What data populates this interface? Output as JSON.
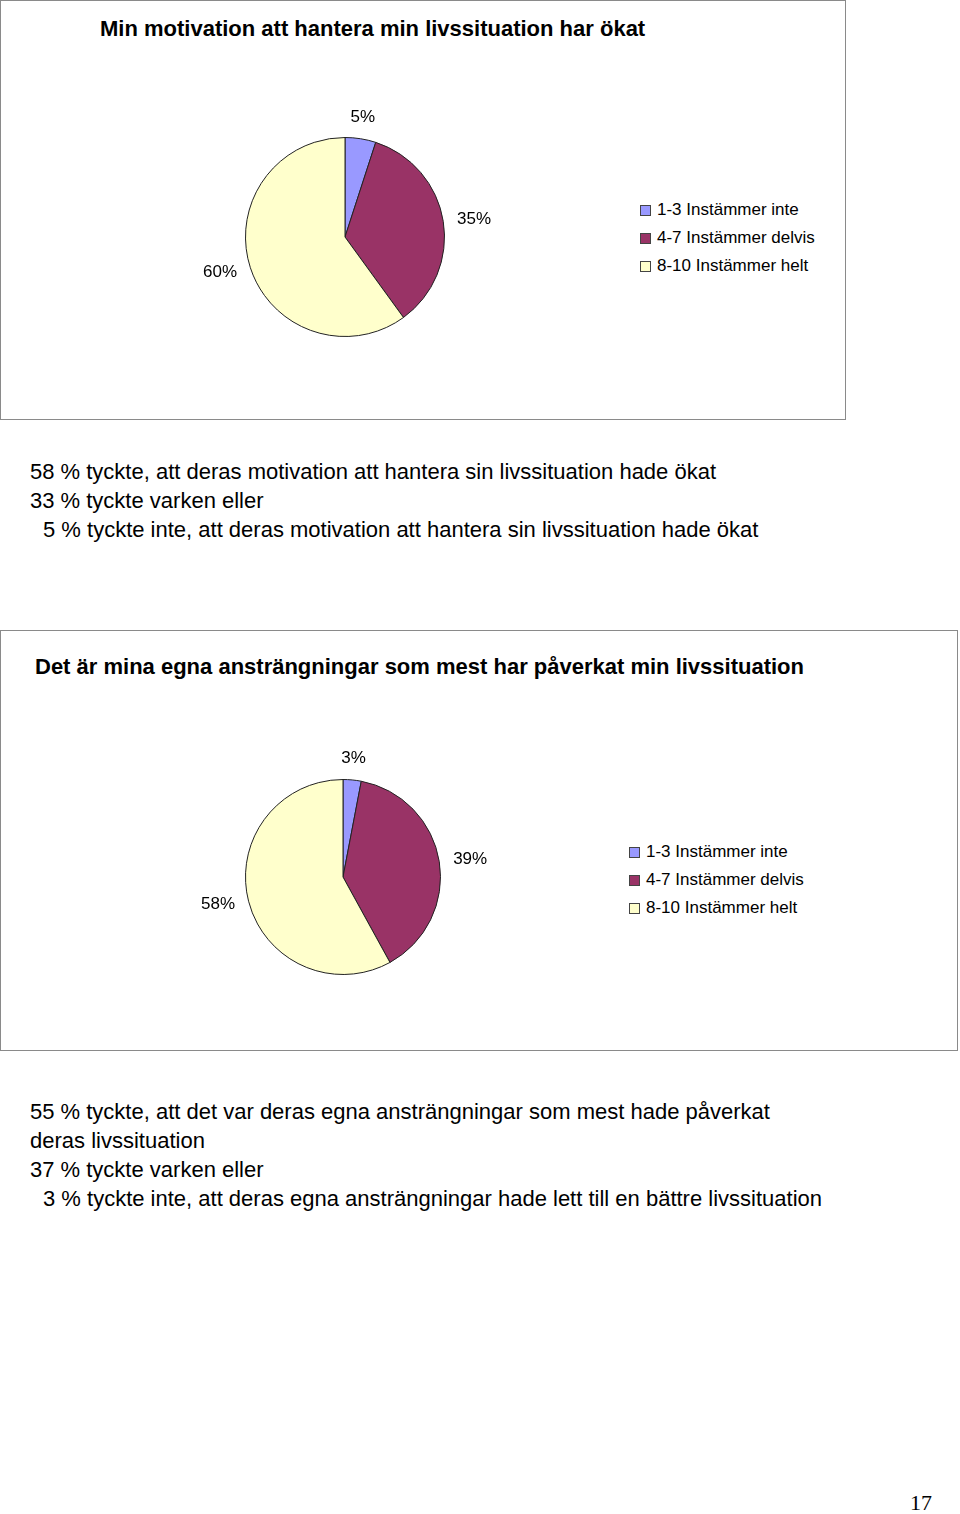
{
  "chart_data": [
    {
      "type": "pie",
      "title": "Min motivation att hantera min livssituation har ökat",
      "categories": [
        "1-3 Instämmer inte",
        "4-7 Instämmer delvis",
        "8-10 Instämmer helt"
      ],
      "values": [
        5,
        35,
        60
      ],
      "value_labels": [
        "5%",
        "35%",
        "60%"
      ],
      "colors": [
        "#9999ff",
        "#993366",
        "#ffffcc"
      ],
      "data_labels": true,
      "legend": "right"
    },
    {
      "type": "pie",
      "title": "Det är mina egna ansträngningar som mest har påverkat min livssituation",
      "categories": [
        "1-3 Instämmer inte",
        "4-7 Instämmer delvis",
        "8-10 Instämmer helt"
      ],
      "values": [
        3,
        39,
        58
      ],
      "value_labels": [
        "3%",
        "39%",
        "58%"
      ],
      "colors": [
        "#9999ff",
        "#993366",
        "#ffffcc"
      ],
      "data_labels": true,
      "legend": "right"
    }
  ],
  "captions": [
    [
      "58 % tyckte, att deras motivation att hantera sin livssituation hade ökat",
      "33 % tyckte varken eller",
      "5 % tyckte inte, att deras motivation att hantera sin livssituation hade ökat"
    ],
    [
      "55 % tyckte, att det var deras egna ansträngningar som mest hade påverkat",
      "deras livssituation",
      "37 % tyckte varken eller",
      "3 % tyckte inte, att deras egna ansträngningar hade lett till en bättre livssituation"
    ]
  ],
  "page_number": 17
}
